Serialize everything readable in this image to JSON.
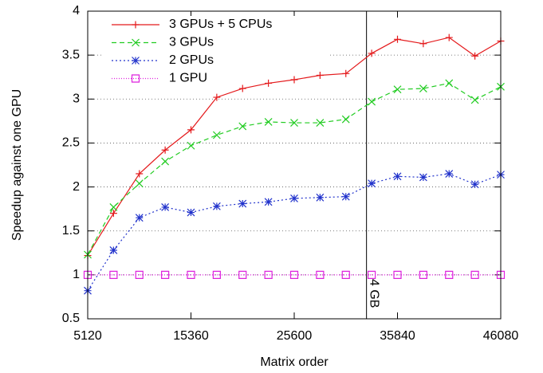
{
  "chart_data": {
    "type": "line",
    "xlabel": "Matrix order",
    "ylabel": "Speedup against one GPU",
    "x": [
      5120,
      7680,
      10240,
      12800,
      15360,
      17920,
      20480,
      23040,
      25600,
      28160,
      30720,
      33280,
      35840,
      38400,
      40960,
      43520,
      46080
    ],
    "series": [
      {
        "name": "3 GPUs + 5 CPUs",
        "color": "#e41a1c",
        "marker": "plus",
        "dash": "none",
        "values": [
          1.22,
          1.7,
          2.15,
          2.42,
          2.65,
          3.02,
          3.12,
          3.18,
          3.22,
          3.27,
          3.29,
          3.52,
          3.68,
          3.63,
          3.7,
          3.49,
          3.66
        ]
      },
      {
        "name": "3 GPUs",
        "color": "#22cc22",
        "marker": "cross",
        "dash": "6 4",
        "values": [
          1.23,
          1.77,
          2.04,
          2.29,
          2.47,
          2.59,
          2.69,
          2.74,
          2.73,
          2.73,
          2.77,
          2.97,
          3.11,
          3.12,
          3.18,
          2.99,
          3.14
        ]
      },
      {
        "name": "2 GPUs",
        "color": "#2233cc",
        "marker": "star",
        "dash": "2 3",
        "values": [
          0.82,
          1.28,
          1.65,
          1.77,
          1.71,
          1.78,
          1.81,
          1.83,
          1.87,
          1.88,
          1.89,
          2.04,
          2.12,
          2.11,
          2.15,
          2.03,
          2.14
        ]
      },
      {
        "name": "1 GPU",
        "color": "#dd22dd",
        "marker": "square",
        "dash": "1 2",
        "values": [
          1,
          1,
          1,
          1,
          1,
          1,
          1,
          1,
          1,
          1,
          1,
          1,
          1,
          1,
          1,
          1,
          1
        ]
      }
    ],
    "annotation": {
      "text": "4 GB",
      "x": 32768
    },
    "xlim": [
      5120,
      46080
    ],
    "xticks": [
      5120,
      15360,
      25600,
      35840,
      46080
    ],
    "ylim": [
      0.5,
      4
    ],
    "yticks": [
      0.5,
      1,
      1.5,
      2,
      2.5,
      3,
      3.5,
      4
    ],
    "grid": true,
    "legend": "upper-left"
  }
}
